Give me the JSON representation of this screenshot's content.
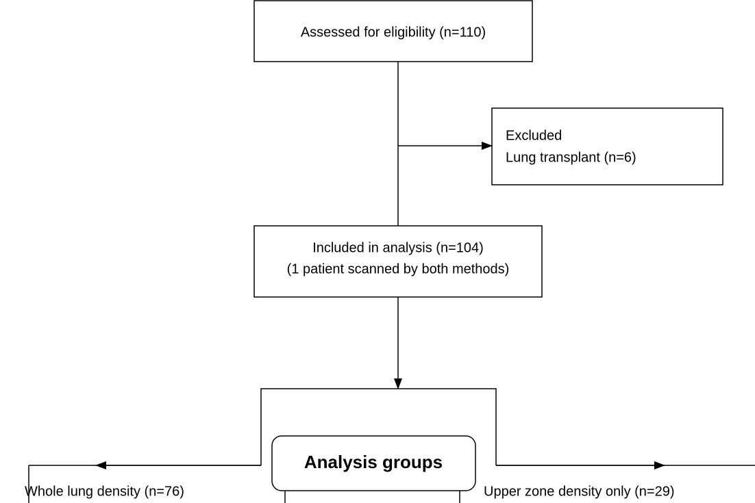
{
  "nodes": [
    {
      "label": "Assessed for eligibility (n=110)"
    },
    {
      "label": "Excluded",
      "detail": "Lung transplant (n=6)"
    },
    {
      "label": "Included in analysis (n=104)",
      "detail": "(1 patient scanned by both methods)"
    },
    {
      "label": "Analysis groups"
    },
    {
      "label": "Whole lung density (n=76)"
    },
    {
      "label": "Upper zone density only (n=29)"
    }
  ]
}
